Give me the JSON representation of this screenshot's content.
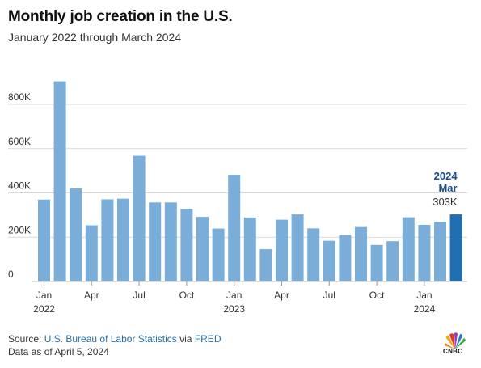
{
  "title": "Monthly job creation in the U.S.",
  "subtitle": "January 2022 through March 2024",
  "footer": {
    "source_prefix": "Source: ",
    "source_bls": "U.S. Bureau of Labor Statistics",
    "source_via": " via ",
    "source_fred": "FRED",
    "date_note": "Data as of April 5, 2024"
  },
  "logo": {
    "text": "CNBC",
    "icon": "peacock-logo-icon"
  },
  "colors": {
    "bar": "#7aaed8",
    "highlight": "#1f6fb2",
    "grid": "#d9d9d9",
    "highlight_text": "#1a4f8a"
  },
  "highlight": {
    "year": "2024",
    "month": "Mar",
    "value_label": "303K"
  },
  "chart_data": {
    "type": "bar",
    "categories": [
      "Jan 2022",
      "Feb 2022",
      "Mar 2022",
      "Apr 2022",
      "May 2022",
      "Jun 2022",
      "Jul 2022",
      "Aug 2022",
      "Sep 2022",
      "Oct 2022",
      "Nov 2022",
      "Dec 2022",
      "Jan 2023",
      "Feb 2023",
      "Mar 2023",
      "Apr 2023",
      "May 2023",
      "Jun 2023",
      "Jul 2023",
      "Aug 2023",
      "Sep 2023",
      "Oct 2023",
      "Nov 2023",
      "Dec 2023",
      "Jan 2024",
      "Feb 2024",
      "Mar 2024"
    ],
    "values": [
      370000,
      904000,
      420000,
      254000,
      371000,
      374000,
      568000,
      357000,
      357000,
      328000,
      292000,
      239000,
      482000,
      289000,
      146000,
      279000,
      303000,
      240000,
      184000,
      210000,
      246000,
      165000,
      182000,
      290000,
      256000,
      270000,
      303000
    ],
    "ylim": [
      0,
      950000
    ],
    "yticks": [
      0,
      200000,
      400000,
      600000,
      800000
    ],
    "ytick_labels": [
      "0",
      "200K",
      "400K",
      "600K",
      "800K"
    ],
    "xticks": [
      {
        "index": 0,
        "label": "Jan",
        "year": "2022"
      },
      {
        "index": 3,
        "label": "Apr",
        "year": ""
      },
      {
        "index": 6,
        "label": "Jul",
        "year": ""
      },
      {
        "index": 9,
        "label": "Oct",
        "year": ""
      },
      {
        "index": 12,
        "label": "Jan",
        "year": "2023"
      },
      {
        "index": 15,
        "label": "Apr",
        "year": ""
      },
      {
        "index": 18,
        "label": "Jul",
        "year": ""
      },
      {
        "index": 21,
        "label": "Oct",
        "year": ""
      },
      {
        "index": 24,
        "label": "Jan",
        "year": "2024"
      }
    ],
    "grid": true,
    "highlight_index": 26
  }
}
